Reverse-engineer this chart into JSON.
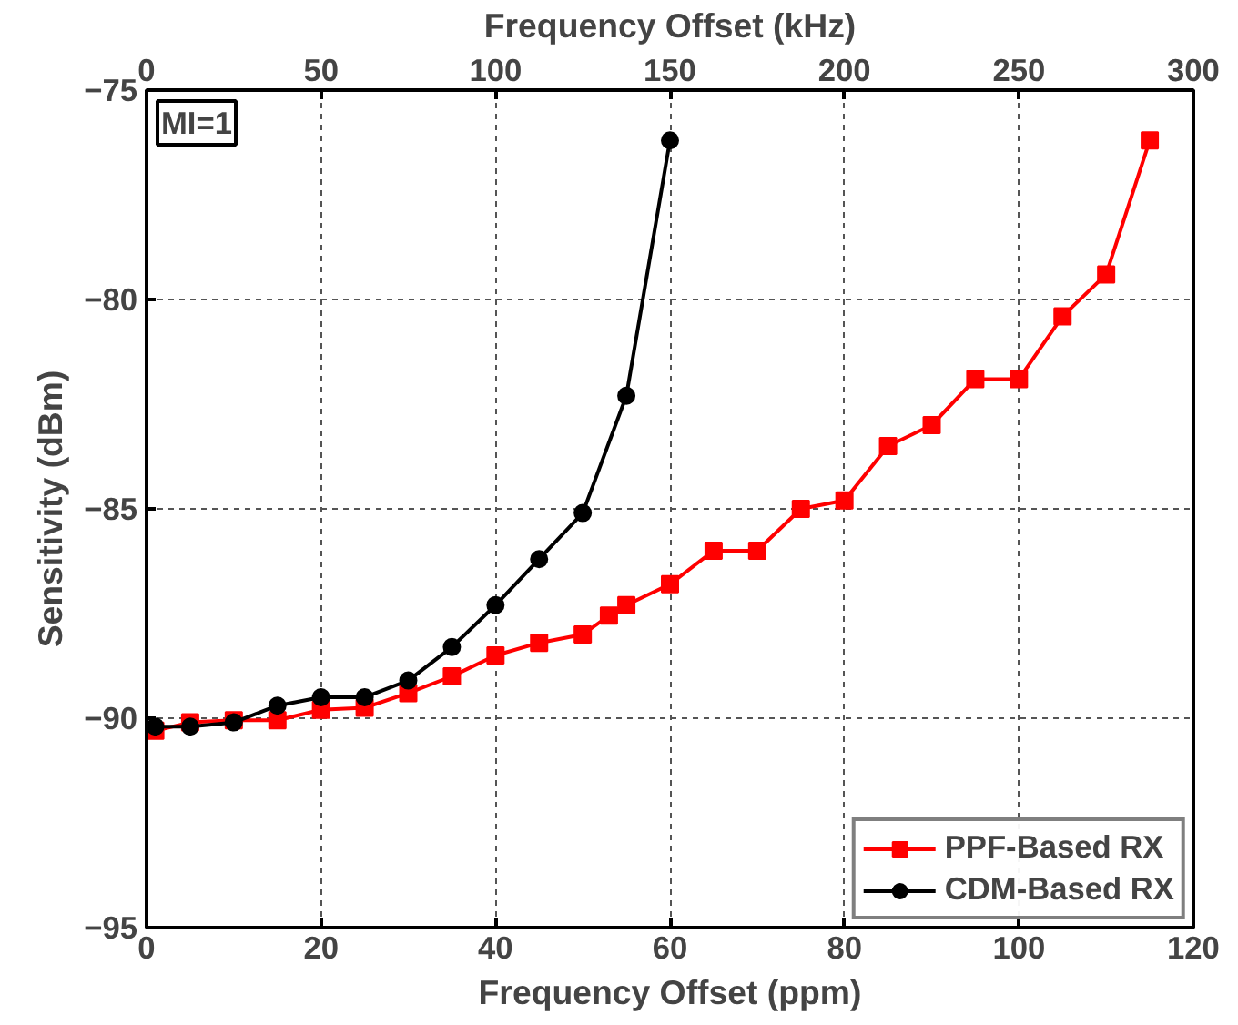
{
  "chart_data": {
    "type": "line",
    "xlabel": "Frequency Offset (ppm)",
    "ylabel": "Sensitivity (dBm)",
    "x2label": "Frequency Offset (kHz)",
    "xlim": [
      0,
      120
    ],
    "xticks": [
      0,
      20,
      40,
      60,
      80,
      100,
      120
    ],
    "x2lim": [
      0,
      300
    ],
    "x2ticks": [
      0,
      50,
      100,
      150,
      200,
      250,
      300
    ],
    "ylim": [
      -95,
      -75
    ],
    "yticks": [
      -95,
      -90,
      -85,
      -80,
      -75
    ],
    "grid": true,
    "legend": "bottom right",
    "line_style": "solid",
    "annotations": [
      "MI=1"
    ],
    "series": [
      {
        "name": "PPF-Based RX",
        "color": "#ff0000",
        "marker": "square",
        "x": [
          1,
          5,
          10,
          15,
          20,
          25,
          30,
          35,
          40,
          45,
          50,
          53,
          55,
          60,
          65,
          70,
          75,
          80,
          85,
          90,
          95,
          100,
          105,
          110,
          115
        ],
        "values": [
          -90.3,
          -90.1,
          -90.05,
          -90.05,
          -89.8,
          -89.75,
          -89.4,
          -89.0,
          -88.5,
          -88.2,
          -88.0,
          -87.55,
          -87.3,
          -86.8,
          -86.0,
          -86.0,
          -85.0,
          -84.8,
          -83.5,
          -83.0,
          -81.9,
          -81.9,
          -80.4,
          -79.4,
          -76.2
        ]
      },
      {
        "name": "CDM-Based RX",
        "color": "#000000",
        "marker": "circle",
        "x": [
          1,
          5,
          10,
          15,
          20,
          25,
          30,
          35,
          40,
          45,
          50,
          55,
          60
        ],
        "values": [
          -90.2,
          -90.2,
          -90.1,
          -89.7,
          -89.5,
          -89.5,
          -89.1,
          -88.3,
          -87.3,
          -86.2,
          -85.1,
          -82.3,
          -76.2
        ]
      }
    ]
  }
}
